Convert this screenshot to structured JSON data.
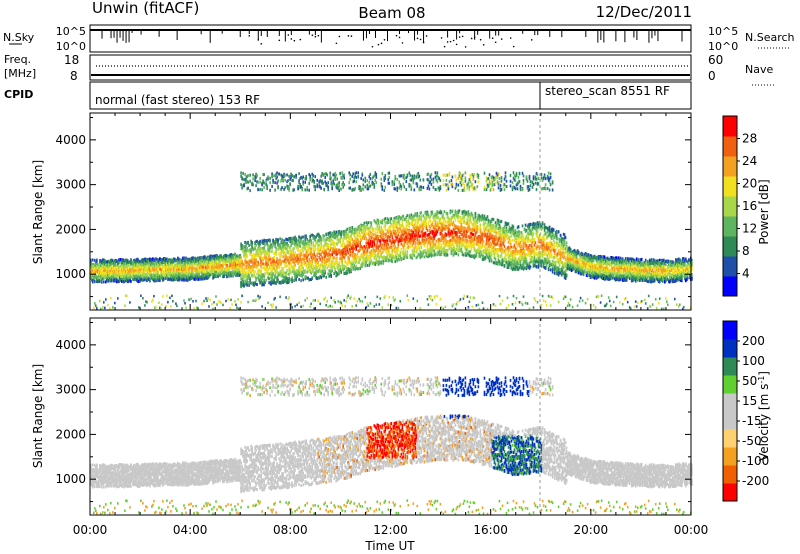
{
  "header": {
    "station": "Unwin (fitACF)",
    "beam": "Beam 08",
    "date": "12/Dec/2011"
  },
  "summary": {
    "nsky_label": "N.Sky",
    "nsearch_label": "N.Search",
    "nsky_ticks": [
      "10^5",
      "10^0"
    ],
    "freq_label_line1": "Freq.",
    "freq_label_line2": "[MHz]",
    "freq_ticks": [
      "18",
      "8"
    ],
    "nave_label": "Nave",
    "nave_ticks": [
      "60",
      "0"
    ],
    "cpid_label": "CPID",
    "cpid_modes": [
      {
        "name": "normal (fast stereo) 153 RF",
        "start_hour": 0,
        "end_hour": 18
      },
      {
        "name": "stereo_scan 8551 RF",
        "start_hour": 18,
        "end_hour": 24
      }
    ]
  },
  "colors": {
    "power_scale": [
      "#0000ff",
      "#1f4fa8",
      "#2e8b57",
      "#5fb55f",
      "#a8d84a",
      "#f0e020",
      "#f4a020",
      "#f06010",
      "#ff0000"
    ],
    "velocity_scale": [
      "#ff0000",
      "#f06000",
      "#f4a020",
      "#ffd070",
      "#c8c8c8",
      "#c8c8c8",
      "#60d030",
      "#2e8b57",
      "#0030c0",
      "#0000ff"
    ]
  },
  "chart_data": [
    {
      "type": "heatmap",
      "panel": "power",
      "xlabel": "",
      "ylabel": "Slant Range [km]",
      "x_range_hours": [
        0,
        24
      ],
      "ylim": [
        200,
        4600
      ],
      "y_ticks": [
        1000,
        2000,
        3000,
        4000
      ],
      "colorbar_label": "Power [dB]",
      "colorbar_ticks": [
        "4",
        "8",
        "12",
        "16",
        "20",
        "24",
        "28"
      ],
      "colorbar_range": [
        0,
        30
      ],
      "backscatter_band": {
        "hours": [
          0,
          2,
          4,
          6,
          8,
          10,
          11,
          12,
          13,
          14,
          15,
          16,
          17,
          18,
          19,
          20,
          21,
          22,
          23,
          24
        ],
        "center_km": [
          1100,
          1120,
          1150,
          1250,
          1350,
          1500,
          1700,
          1800,
          1900,
          1950,
          1950,
          1800,
          1600,
          1700,
          1400,
          1200,
          1150,
          1120,
          1100,
          1150
        ],
        "core_power_db": [
          22,
          22,
          22,
          24,
          24,
          26,
          28,
          28,
          28,
          28,
          27,
          26,
          24,
          24,
          22,
          22,
          22,
          22,
          22,
          20
        ]
      }
    },
    {
      "type": "heatmap",
      "panel": "velocity",
      "xlabel": "Time UT",
      "ylabel": "Slant Range [km]",
      "x_range_hours": [
        0,
        24
      ],
      "x_tick_labels": [
        "00:00",
        "04:00",
        "08:00",
        "12:00",
        "16:00",
        "20:00",
        "00:00"
      ],
      "ylim": [
        200,
        4600
      ],
      "y_ticks": [
        1000,
        2000,
        3000,
        4000
      ],
      "colorbar_label": "Velocity [m s^-1]",
      "colorbar_ticks": [
        "-200",
        "-100",
        "-50",
        "-15",
        "15",
        "50",
        "100",
        "200"
      ],
      "colorbar_range": [
        -250,
        250
      ]
    }
  ]
}
